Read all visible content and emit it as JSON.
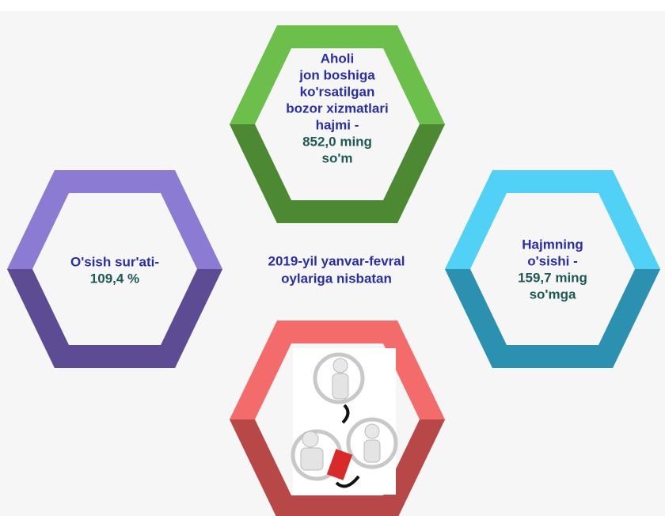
{
  "center_text": [
    "2019-yil yanvar-fevral",
    "oylariga nisbatan"
  ],
  "hexagons": [
    {
      "heading_lines": [
        "Aholi",
        "jon boshiga",
        "ko'rsatilgan",
        "bozor xizmatlari",
        "hajmi -"
      ],
      "value_lines": [
        "852,0 ming",
        "so'm"
      ]
    },
    {
      "heading_lines": [
        "O'sish sur'ati-"
      ],
      "value_lines": [
        "109,4 %"
      ]
    },
    {
      "heading_lines": [
        "Hajmning",
        "o'sishi -"
      ],
      "value_lines": [
        "159,7 ming",
        "so'mga"
      ]
    }
  ]
}
